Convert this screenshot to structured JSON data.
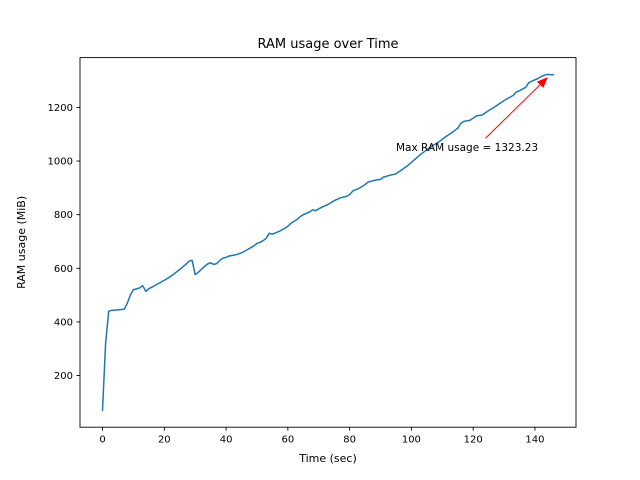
{
  "chart_data": {
    "type": "line",
    "title": "RAM usage over Time",
    "xlabel": "Time (sec)",
    "ylabel": "RAM usage (MiB)",
    "xlim": [
      -7.3,
      153.3
    ],
    "ylim": [
      7.4,
      1385.8
    ],
    "xticks": [
      0,
      20,
      40,
      60,
      80,
      100,
      120,
      140
    ],
    "yticks": [
      200,
      400,
      600,
      800,
      1000,
      1200
    ],
    "grid": false,
    "legend": null,
    "line_color": "#1f77b4",
    "points": [
      [
        0,
        70
      ],
      [
        1,
        320
      ],
      [
        2,
        440
      ],
      [
        3,
        443
      ],
      [
        5,
        445
      ],
      [
        7,
        447
      ],
      [
        8,
        470
      ],
      [
        9,
        500
      ],
      [
        10,
        520
      ],
      [
        11,
        523
      ],
      [
        12,
        527
      ],
      [
        13,
        535
      ],
      [
        14,
        514
      ],
      [
        15,
        524
      ],
      [
        17,
        536
      ],
      [
        19,
        549
      ],
      [
        21,
        562
      ],
      [
        23,
        578
      ],
      [
        25,
        596
      ],
      [
        27,
        615
      ],
      [
        28,
        627
      ],
      [
        29,
        630
      ],
      [
        30,
        576
      ],
      [
        31,
        585
      ],
      [
        33,
        607
      ],
      [
        34,
        616
      ],
      [
        35,
        621
      ],
      [
        36,
        614
      ],
      [
        37,
        618
      ],
      [
        38,
        630
      ],
      [
        39,
        638
      ],
      [
        40,
        641
      ],
      [
        41,
        646
      ],
      [
        43,
        650
      ],
      [
        45,
        658
      ],
      [
        47,
        670
      ],
      [
        49,
        684
      ],
      [
        50,
        693
      ],
      [
        51,
        697
      ],
      [
        52,
        703
      ],
      [
        53,
        712
      ],
      [
        54,
        731
      ],
      [
        55,
        727
      ],
      [
        57,
        737
      ],
      [
        59,
        749
      ],
      [
        60,
        757
      ],
      [
        61,
        768
      ],
      [
        63,
        782
      ],
      [
        64,
        793
      ],
      [
        65,
        800
      ],
      [
        67,
        810
      ],
      [
        68,
        818
      ],
      [
        69,
        815
      ],
      [
        71,
        828
      ],
      [
        73,
        838
      ],
      [
        75,
        852
      ],
      [
        77,
        863
      ],
      [
        79,
        868
      ],
      [
        80,
        875
      ],
      [
        81,
        888
      ],
      [
        83,
        898
      ],
      [
        85,
        912
      ],
      [
        86,
        922
      ],
      [
        88,
        928
      ],
      [
        90,
        932
      ],
      [
        91,
        940
      ],
      [
        93,
        947
      ],
      [
        95,
        952
      ],
      [
        97,
        968
      ],
      [
        99,
        985
      ],
      [
        101,
        1005
      ],
      [
        103,
        1025
      ],
      [
        105,
        1042
      ],
      [
        107,
        1058
      ],
      [
        109,
        1072
      ],
      [
        111,
        1090
      ],
      [
        113,
        1105
      ],
      [
        115,
        1122
      ],
      [
        116,
        1140
      ],
      [
        117,
        1148
      ],
      [
        119,
        1152
      ],
      [
        121,
        1168
      ],
      [
        123,
        1172
      ],
      [
        125,
        1188
      ],
      [
        127,
        1202
      ],
      [
        129,
        1218
      ],
      [
        131,
        1232
      ],
      [
        133,
        1245
      ],
      [
        134,
        1258
      ],
      [
        135,
        1262
      ],
      [
        137,
        1275
      ],
      [
        138,
        1292
      ],
      [
        139,
        1298
      ],
      [
        141,
        1308
      ],
      [
        142,
        1315
      ],
      [
        143,
        1320
      ],
      [
        144,
        1323.23
      ],
      [
        145,
        1322
      ],
      [
        146,
        1322
      ]
    ],
    "max_value": 1323.23,
    "annotation": {
      "text": "Max RAM usage = 1323.23",
      "color": "#ff0000",
      "text_pos": [
        95,
        1050
      ],
      "arrow_tail": [
        124,
        1085
      ],
      "arrow_tip": [
        144.2,
        1313
      ]
    }
  }
}
